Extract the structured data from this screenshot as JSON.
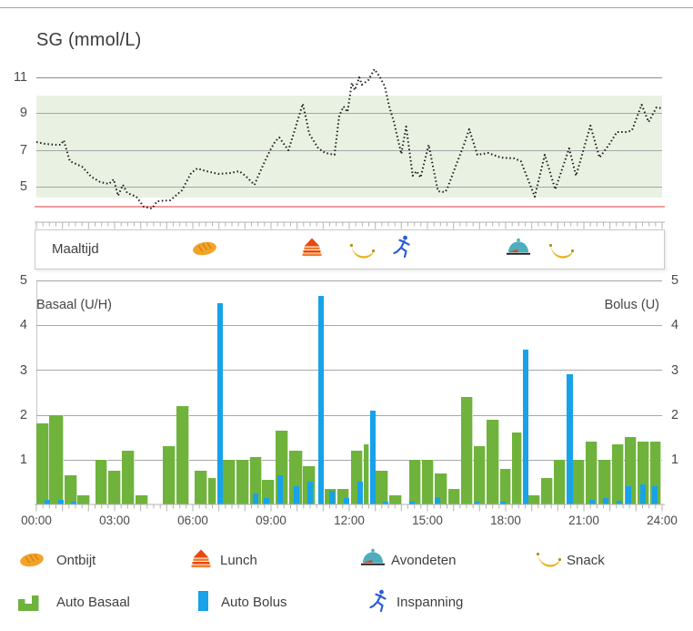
{
  "title": "SG (mmol/L)",
  "meal_row": {
    "label": "Maaltijd",
    "events": [
      {
        "name": "Ontbijt",
        "icon": "bread-icon",
        "time_min": 387
      },
      {
        "name": "Lunch",
        "icon": "lunch-icon",
        "time_min": 634
      },
      {
        "name": "Snack",
        "icon": "banana-icon",
        "time_min": 749
      },
      {
        "name": "Inspanning",
        "icon": "runner-icon",
        "time_min": 843
      },
      {
        "name": "Avondeten",
        "icon": "dinner-icon",
        "time_min": 1109
      },
      {
        "name": "Snack",
        "icon": "banana-icon",
        "time_min": 1208
      }
    ]
  },
  "legend": {
    "items": [
      {
        "icon": "bread-icon",
        "label": "Ontbijt"
      },
      {
        "icon": "lunch-icon",
        "label": "Lunch"
      },
      {
        "icon": "dinner-icon",
        "label": "Avondeten"
      },
      {
        "icon": "banana-icon",
        "label": "Snack"
      },
      {
        "icon": "basal-icon",
        "label": "Auto Basaal"
      },
      {
        "icon": "bolus-icon",
        "label": "Auto Bolus"
      },
      {
        "icon": "runner-icon",
        "label": "Inspanning"
      }
    ]
  },
  "colors": {
    "basal": "#6fb33c",
    "bolus": "#17a2ea",
    "target_band": "#e9f1e3",
    "low_line": "#f39c9c",
    "trace": "#1c1c1c"
  },
  "chart_data": [
    {
      "type": "line",
      "title": "SG (mmol/L)",
      "ylabel": "mmol/L",
      "style": "dotted",
      "y_tick_labels": [
        "11",
        "9",
        "7",
        "5"
      ],
      "y_ticks": [
        11,
        9,
        7,
        5
      ],
      "ylim": [
        3.5,
        11.6
      ],
      "x_range_min": [
        0,
        1440
      ],
      "target_band": {
        "low": 4.4,
        "high": 10.0
      },
      "low_limit": 3.9,
      "points": [
        [
          0,
          7.45
        ],
        [
          20,
          7.35
        ],
        [
          45,
          7.3
        ],
        [
          56,
          7.3
        ],
        [
          63,
          7.55
        ],
        [
          77,
          6.4
        ],
        [
          105,
          6.1
        ],
        [
          126,
          5.55
        ],
        [
          147,
          5.25
        ],
        [
          167,
          5.15
        ],
        [
          178,
          5.4
        ],
        [
          188,
          4.5
        ],
        [
          199,
          5.1
        ],
        [
          209,
          4.65
        ],
        [
          230,
          4.45
        ],
        [
          247,
          3.9
        ],
        [
          266,
          3.8
        ],
        [
          278,
          4.2
        ],
        [
          308,
          4.25
        ],
        [
          335,
          4.8
        ],
        [
          356,
          5.75
        ],
        [
          370,
          6.0
        ],
        [
          391,
          5.85
        ],
        [
          419,
          5.7
        ],
        [
          446,
          5.75
        ],
        [
          467,
          5.85
        ],
        [
          481,
          5.6
        ],
        [
          502,
          5.1
        ],
        [
          509,
          5.5
        ],
        [
          523,
          6.25
        ],
        [
          538,
          7.0
        ],
        [
          550,
          7.5
        ],
        [
          559,
          7.7
        ],
        [
          580,
          7.0
        ],
        [
          592,
          7.9
        ],
        [
          613,
          9.55
        ],
        [
          622,
          8.6
        ],
        [
          628,
          7.9
        ],
        [
          649,
          7.1
        ],
        [
          665,
          6.85
        ],
        [
          686,
          6.75
        ],
        [
          697,
          8.9
        ],
        [
          707,
          9.4
        ],
        [
          716,
          9.1
        ],
        [
          726,
          10.7
        ],
        [
          733,
          10.3
        ],
        [
          743,
          11.0
        ],
        [
          749,
          10.6
        ],
        [
          764,
          10.85
        ],
        [
          778,
          11.45
        ],
        [
          791,
          11.0
        ],
        [
          802,
          10.5
        ],
        [
          812,
          9.4
        ],
        [
          823,
          8.55
        ],
        [
          833,
          7.5
        ],
        [
          840,
          6.8
        ],
        [
          851,
          8.3
        ],
        [
          866,
          5.6
        ],
        [
          875,
          5.85
        ],
        [
          884,
          5.5
        ],
        [
          903,
          7.3
        ],
        [
          924,
          4.75
        ],
        [
          940,
          4.7
        ],
        [
          945,
          4.85
        ],
        [
          963,
          6.0
        ],
        [
          984,
          7.3
        ],
        [
          996,
          8.15
        ],
        [
          1015,
          6.75
        ],
        [
          1040,
          6.85
        ],
        [
          1068,
          6.6
        ],
        [
          1100,
          6.55
        ],
        [
          1115,
          6.4
        ],
        [
          1147,
          4.45
        ],
        [
          1170,
          6.75
        ],
        [
          1194,
          4.85
        ],
        [
          1226,
          7.1
        ],
        [
          1242,
          5.6
        ],
        [
          1275,
          8.35
        ],
        [
          1296,
          6.6
        ],
        [
          1318,
          7.3
        ],
        [
          1336,
          8.0
        ],
        [
          1360,
          8.0
        ],
        [
          1371,
          8.1
        ],
        [
          1393,
          9.5
        ],
        [
          1409,
          8.55
        ],
        [
          1427,
          9.35
        ],
        [
          1440,
          9.3
        ]
      ]
    },
    {
      "type": "bar",
      "left_axis_label": "Basaal (U/H)",
      "right_axis_label": "Bolus (U)",
      "y_tick_labels": [
        "5",
        "4",
        "3",
        "2",
        "1"
      ],
      "y_ticks": [
        5,
        4,
        3,
        2,
        1
      ],
      "ylim": [
        0,
        5
      ],
      "x_tick_labels": [
        "00:00",
        "03:00",
        "06:00",
        "09:00",
        "12:00",
        "15:00",
        "18:00",
        "21:00",
        "24:00"
      ],
      "basal_bars_min_start_end_uh": [
        [
          0,
          30,
          1.8
        ],
        [
          30,
          65,
          2.0
        ],
        [
          65,
          95,
          0.65
        ],
        [
          95,
          125,
          0.2
        ],
        [
          135,
          165,
          1.0
        ],
        [
          165,
          197,
          0.75
        ],
        [
          197,
          228,
          1.2
        ],
        [
          228,
          260,
          0.2
        ],
        [
          291,
          322,
          1.3
        ],
        [
          322,
          354,
          2.2
        ],
        [
          365,
          396,
          0.75
        ],
        [
          396,
          417,
          0.6
        ],
        [
          429,
          460,
          1.0
        ],
        [
          460,
          492,
          1.0
        ],
        [
          492,
          520,
          1.05
        ],
        [
          520,
          551,
          0.55
        ],
        [
          551,
          582,
          1.65
        ],
        [
          582,
          614,
          1.2
        ],
        [
          614,
          645,
          0.85
        ],
        [
          663,
          693,
          0.35
        ],
        [
          693,
          722,
          0.35
        ],
        [
          724,
          753,
          1.2
        ],
        [
          753,
          767,
          1.35
        ],
        [
          780,
          811,
          0.75
        ],
        [
          811,
          843,
          0.2
        ],
        [
          858,
          888,
          1.0
        ],
        [
          888,
          917,
          1.0
        ],
        [
          917,
          948,
          0.7
        ],
        [
          948,
          977,
          0.35
        ],
        [
          977,
          1007,
          2.4
        ],
        [
          1007,
          1036,
          1.3
        ],
        [
          1036,
          1067,
          1.9
        ],
        [
          1067,
          1095,
          0.8
        ],
        [
          1095,
          1120,
          1.6
        ],
        [
          1132,
          1162,
          0.2
        ],
        [
          1162,
          1191,
          0.6
        ],
        [
          1191,
          1220,
          1.0
        ],
        [
          1235,
          1264,
          1.0
        ],
        [
          1264,
          1294,
          1.4
        ],
        [
          1294,
          1325,
          1.0
        ],
        [
          1325,
          1354,
          1.35
        ],
        [
          1354,
          1383,
          1.5
        ],
        [
          1383,
          1413,
          1.4
        ],
        [
          1413,
          1440,
          1.4
        ]
      ],
      "bolus_bars_min_start_end_u": [
        [
          19,
          32,
          0.1
        ],
        [
          50,
          63,
          0.1
        ],
        [
          79,
          92,
          0.06
        ],
        [
          417,
          429,
          4.5
        ],
        [
          497,
          510,
          0.25
        ],
        [
          523,
          536,
          0.15
        ],
        [
          555,
          568,
          0.65
        ],
        [
          593,
          606,
          0.4
        ],
        [
          624,
          637,
          0.5
        ],
        [
          649,
          662,
          4.65
        ],
        [
          673,
          686,
          0.3
        ],
        [
          708,
          721,
          0.15
        ],
        [
          738,
          751,
          0.5
        ],
        [
          767,
          780,
          2.1
        ],
        [
          797,
          810,
          0.07
        ],
        [
          858,
          870,
          0.06
        ],
        [
          917,
          930,
          0.16
        ],
        [
          1008,
          1020,
          0.06
        ],
        [
          1068,
          1080,
          0.06
        ],
        [
          1120,
          1132,
          3.45
        ],
        [
          1221,
          1234,
          2.9
        ],
        [
          1272,
          1285,
          0.1
        ],
        [
          1304,
          1317,
          0.15
        ],
        [
          1336,
          1348,
          0.08
        ],
        [
          1356,
          1369,
          0.4
        ],
        [
          1389,
          1402,
          0.45
        ],
        [
          1417,
          1430,
          0.4
        ]
      ]
    }
  ]
}
